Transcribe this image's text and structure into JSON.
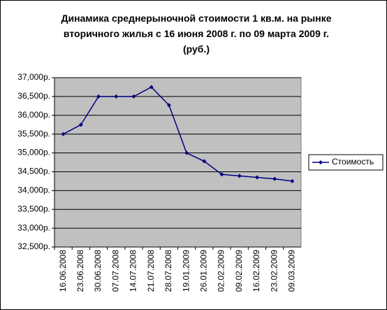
{
  "chart_data": {
    "type": "line",
    "title": "Динамика среднерыночной стоимости 1 кв.м. на рынке вторичного жилья с 16 июня 2008 г. по 09 марта 2009 г. (руб.)",
    "categories": [
      "16.06.2008",
      "23.06.2008",
      "30.06.2008",
      "07.07.2008",
      "14.07.2008",
      "21.07.2008",
      "28.07.2008",
      "19.01.2009",
      "26.01.2009",
      "02.02.2009",
      "09.02.2009",
      "16.02.2009",
      "23.02.2009",
      "09.03.2009"
    ],
    "series": [
      {
        "name": "Стоимость",
        "color": "#000080",
        "values": [
          35500,
          35750,
          36500,
          36500,
          36500,
          36750,
          36270,
          35000,
          34780,
          34430,
          34390,
          34350,
          34310,
          34250
        ]
      }
    ],
    "ylim": [
      32500,
      37000
    ],
    "yticks": [
      {
        "value": 32500,
        "label": "32,500р."
      },
      {
        "value": 33000,
        "label": "33,000р."
      },
      {
        "value": 33500,
        "label": "33,500р."
      },
      {
        "value": 34000,
        "label": "34,000р."
      },
      {
        "value": 34500,
        "label": "34,500р."
      },
      {
        "value": 35000,
        "label": "35,000р."
      },
      {
        "value": 35500,
        "label": "35,500р."
      },
      {
        "value": 36000,
        "label": "36,000р."
      },
      {
        "value": 36500,
        "label": "36,500р."
      },
      {
        "value": 37000,
        "label": "37,000р."
      }
    ],
    "grid": true,
    "legend": "right"
  }
}
